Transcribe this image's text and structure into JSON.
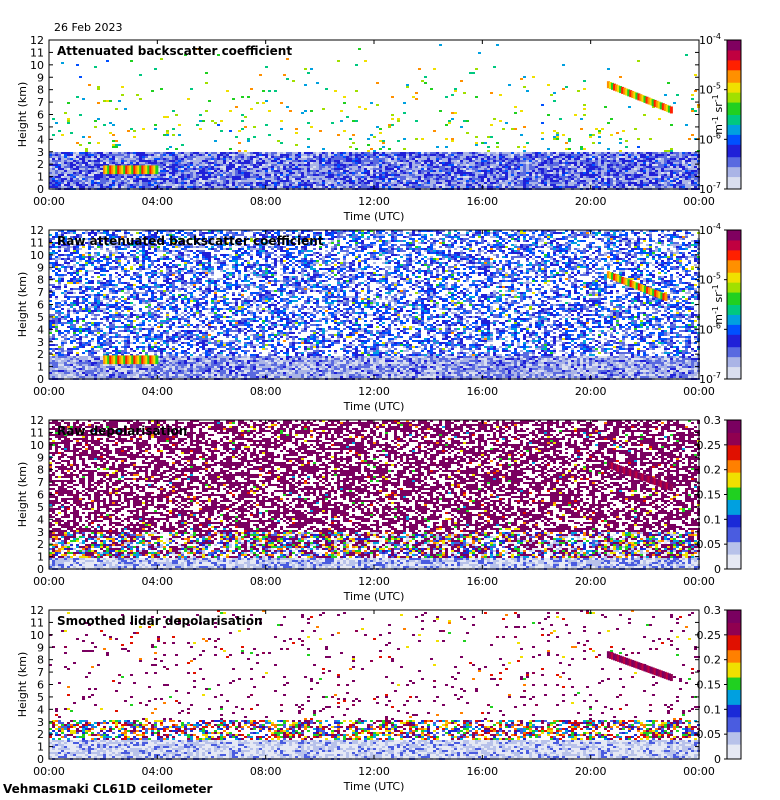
{
  "date_label": "26 Feb 2023",
  "footer_label": "Vehmasmaki CL61D ceilometer",
  "colors": {
    "frame": "#000000",
    "clear_sky": "#ffffff"
  },
  "chart_data": [
    {
      "type": "heatmap",
      "title": "Attenuated backscatter coefficient",
      "xlabel": "Time (UTC)",
      "ylabel": "Height (km)",
      "x_ticks": [
        "00:00",
        "04:00",
        "08:00",
        "12:00",
        "16:00",
        "20:00",
        "00:00"
      ],
      "x_range_hours": [
        0,
        24
      ],
      "y_ticks": [
        0,
        1,
        2,
        3,
        4,
        5,
        6,
        7,
        8,
        9,
        10,
        11,
        12
      ],
      "y_range_km": [
        0,
        12
      ],
      "colorbar": {
        "scale": "log",
        "ticks": [
          {
            "base": "10",
            "exp": "-4"
          },
          {
            "base": "10",
            "exp": "-5"
          },
          {
            "base": "10",
            "exp": "-6"
          },
          {
            "base": "10",
            "exp": "-7"
          }
        ],
        "range": [
          1e-07,
          0.0001
        ],
        "unit": {
          "base1": "m",
          "exp1": "-1",
          "base2": "sr",
          "exp2": "-1"
        }
      },
      "features": [
        {
          "name": "boundary layer",
          "height_km": [
            0,
            3
          ]
        },
        {
          "name": "low cloud",
          "time_h": [
            2.0,
            4.0
          ],
          "height_km": [
            1.2,
            1.9
          ]
        },
        {
          "name": "cirrus",
          "time_h": [
            20.6,
            23.0
          ],
          "height_km": [
            6.3,
            8.4
          ]
        }
      ]
    },
    {
      "type": "heatmap",
      "title": "Raw attenuated backscatter coefficient",
      "xlabel": "Time (UTC)",
      "ylabel": "Height (km)",
      "x_ticks": [
        "00:00",
        "04:00",
        "08:00",
        "12:00",
        "16:00",
        "20:00",
        "00:00"
      ],
      "x_range_hours": [
        0,
        24
      ],
      "y_ticks": [
        0,
        1,
        2,
        3,
        4,
        5,
        6,
        7,
        8,
        9,
        10,
        11,
        12
      ],
      "y_range_km": [
        0,
        12
      ],
      "colorbar": {
        "scale": "log",
        "ticks": [
          {
            "base": "10",
            "exp": "-4"
          },
          {
            "base": "10",
            "exp": "-5"
          },
          {
            "base": "10",
            "exp": "-6"
          },
          {
            "base": "10",
            "exp": "-7"
          }
        ],
        "range": [
          1e-07,
          0.0001
        ],
        "unit": {
          "base1": "m",
          "exp1": "-1",
          "base2": "sr",
          "exp2": "-1"
        }
      },
      "features": [
        {
          "name": "low cloud",
          "time_h": [
            2.0,
            4.0
          ],
          "height_km": [
            1.2,
            1.9
          ]
        },
        {
          "name": "cirrus",
          "time_h": [
            20.6,
            22.8
          ],
          "height_km": [
            6.5,
            8.4
          ]
        }
      ]
    },
    {
      "type": "heatmap",
      "title": "Raw depolarisation",
      "xlabel": "Time (UTC)",
      "ylabel": "Height (km)",
      "x_ticks": [
        "00:00",
        "04:00",
        "08:00",
        "12:00",
        "16:00",
        "20:00",
        "00:00"
      ],
      "x_range_hours": [
        0,
        24
      ],
      "y_ticks": [
        0,
        1,
        2,
        3,
        4,
        5,
        6,
        7,
        8,
        9,
        10,
        11,
        12
      ],
      "y_range_km": [
        0,
        12
      ],
      "colorbar": {
        "scale": "linear",
        "ticks": [
          "0",
          "0.05",
          "0.1",
          "0.15",
          "0.2",
          "0.25",
          "0.3"
        ],
        "range": [
          0,
          0.3
        ]
      },
      "features": [
        {
          "name": "noise",
          "height_km": [
            2,
            12
          ]
        },
        {
          "name": "cirrus",
          "time_h": [
            20.6,
            23.0
          ],
          "height_km": [
            6.5,
            8.4
          ]
        }
      ]
    },
    {
      "type": "heatmap",
      "title": "Smoothed lidar depolarisation",
      "xlabel": "Time (UTC)",
      "ylabel": "Height (km)",
      "x_ticks": [
        "00:00",
        "04:00",
        "08:00",
        "12:00",
        "16:00",
        "20:00",
        "00:00"
      ],
      "x_range_hours": [
        0,
        24
      ],
      "y_ticks": [
        0,
        1,
        2,
        3,
        4,
        5,
        6,
        7,
        8,
        9,
        10,
        11,
        12
      ],
      "y_range_km": [
        0,
        12
      ],
      "colorbar": {
        "scale": "linear",
        "ticks": [
          "0",
          "0.05",
          "0.1",
          "0.15",
          "0.2",
          "0.25",
          "0.3"
        ],
        "range": [
          0,
          0.3
        ]
      },
      "features": [
        {
          "name": "aerosol layer",
          "height_km": [
            0,
            3
          ]
        },
        {
          "name": "cirrus",
          "time_h": [
            20.6,
            23.0
          ],
          "height_km": [
            6.5,
            8.4
          ]
        }
      ]
    }
  ]
}
